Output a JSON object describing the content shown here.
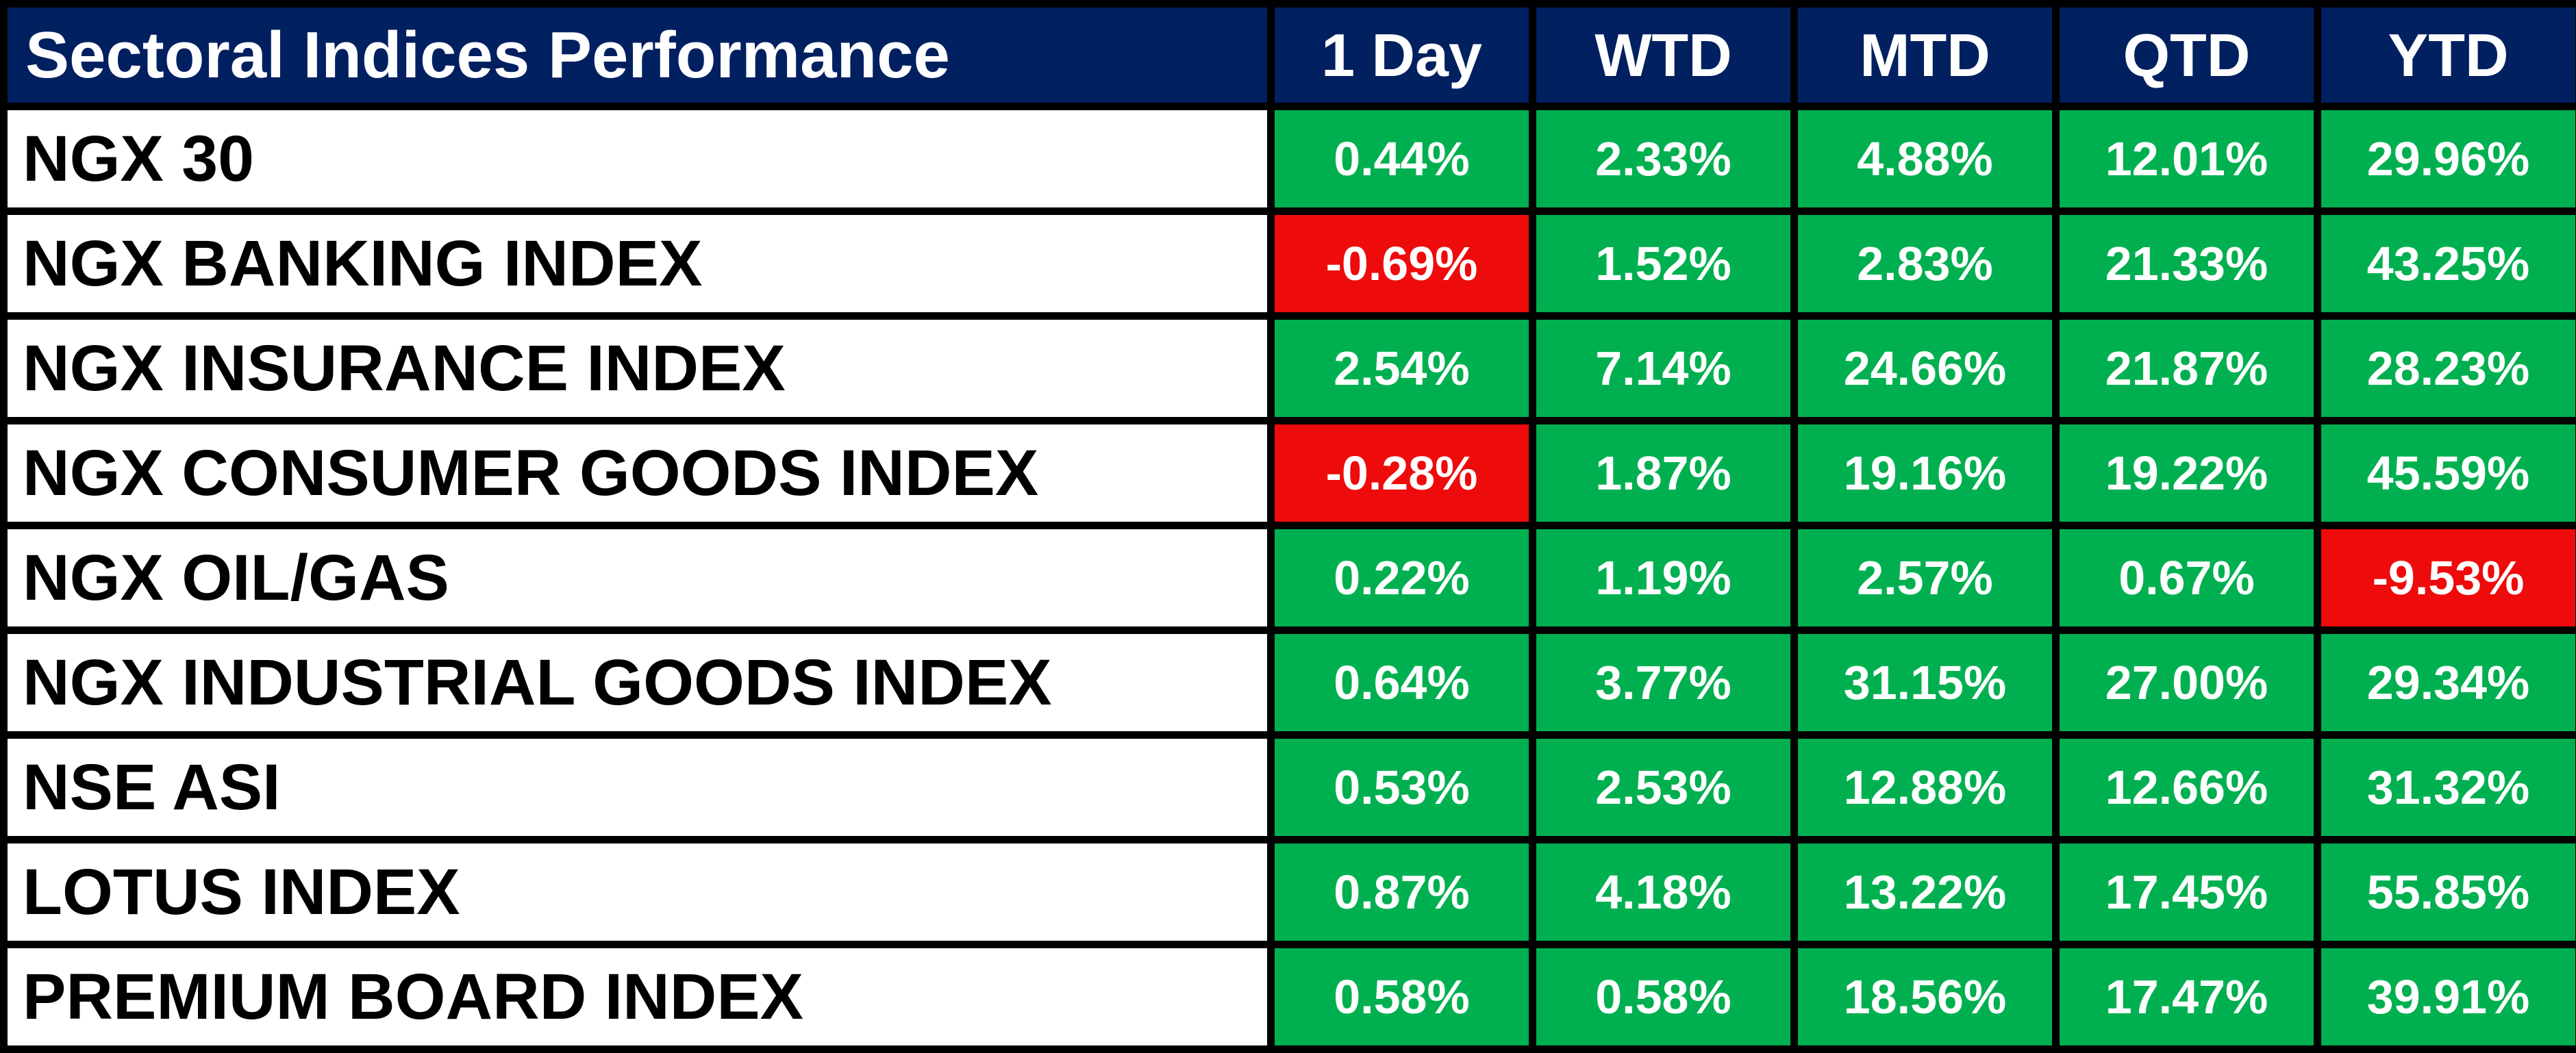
{
  "ui": {
    "title": "Sectoral Indices Performance",
    "columns": [
      "1 Day",
      "WTD",
      "MTD",
      "QTD",
      "YTD"
    ],
    "rows": [
      {
        "label": "NGX 30",
        "values": [
          "0.44%",
          "2.33%",
          "4.88%",
          "12.01%",
          "29.96%"
        ]
      },
      {
        "label": "NGX BANKING INDEX",
        "values": [
          "-0.69%",
          "1.52%",
          "2.83%",
          "21.33%",
          "43.25%"
        ]
      },
      {
        "label": "NGX INSURANCE INDEX",
        "values": [
          "2.54%",
          "7.14%",
          "24.66%",
          "21.87%",
          "28.23%"
        ]
      },
      {
        "label": "NGX CONSUMER GOODS INDEX",
        "values": [
          "-0.28%",
          "1.87%",
          "19.16%",
          "19.22%",
          "45.59%"
        ]
      },
      {
        "label": "NGX OIL/GAS",
        "values": [
          "0.22%",
          "1.19%",
          "2.57%",
          "0.67%",
          "-9.53%"
        ]
      },
      {
        "label": "NGX INDUSTRIAL GOODS INDEX",
        "values": [
          "0.64%",
          "3.77%",
          "31.15%",
          "27.00%",
          "29.34%"
        ]
      },
      {
        "label": "NSE ASI",
        "values": [
          "0.53%",
          "2.53%",
          "12.88%",
          "12.66%",
          "31.32%"
        ]
      },
      {
        "label": "LOTUS INDEX",
        "values": [
          "0.87%",
          "4.18%",
          "13.22%",
          "17.45%",
          "55.85%"
        ]
      },
      {
        "label": "PREMIUM BOARD INDEX",
        "values": [
          "0.58%",
          "0.58%",
          "18.56%",
          "17.47%",
          "39.91%"
        ]
      }
    ],
    "colors": {
      "header_bg": "#002060",
      "positive_bg": "#00B050",
      "negative_bg": "#EE0B0B",
      "grid": "#000000",
      "text_light": "#FFFFFF",
      "text_dark": "#000000"
    }
  },
  "chart_data": {
    "type": "table",
    "title": "Sectoral Indices Performance",
    "columns": [
      "1 Day",
      "WTD",
      "MTD",
      "QTD",
      "YTD"
    ],
    "unit": "percent",
    "rows": [
      {
        "label": "NGX 30",
        "values": [
          0.44,
          2.33,
          4.88,
          12.01,
          29.96
        ]
      },
      {
        "label": "NGX BANKING INDEX",
        "values": [
          -0.69,
          1.52,
          2.83,
          21.33,
          43.25
        ]
      },
      {
        "label": "NGX INSURANCE INDEX",
        "values": [
          2.54,
          7.14,
          24.66,
          21.87,
          28.23
        ]
      },
      {
        "label": "NGX CONSUMER GOODS INDEX",
        "values": [
          -0.28,
          1.87,
          19.16,
          19.22,
          45.59
        ]
      },
      {
        "label": "NGX OIL/GAS",
        "values": [
          0.22,
          1.19,
          2.57,
          0.67,
          -9.53
        ]
      },
      {
        "label": "NGX INDUSTRIAL GOODS INDEX",
        "values": [
          0.64,
          3.77,
          31.15,
          27.0,
          29.34
        ]
      },
      {
        "label": "NSE ASI",
        "values": [
          0.53,
          2.53,
          12.88,
          12.66,
          31.32
        ]
      },
      {
        "label": "LOTUS INDEX",
        "values": [
          0.87,
          4.18,
          13.22,
          17.45,
          55.85
        ]
      },
      {
        "label": "PREMIUM BOARD INDEX",
        "values": [
          0.58,
          0.58,
          18.56,
          17.47,
          39.91
        ]
      }
    ],
    "layout_hints": {
      "negative_cells_highlighted": true,
      "grid": true,
      "first_column_is_row_label": true
    }
  }
}
